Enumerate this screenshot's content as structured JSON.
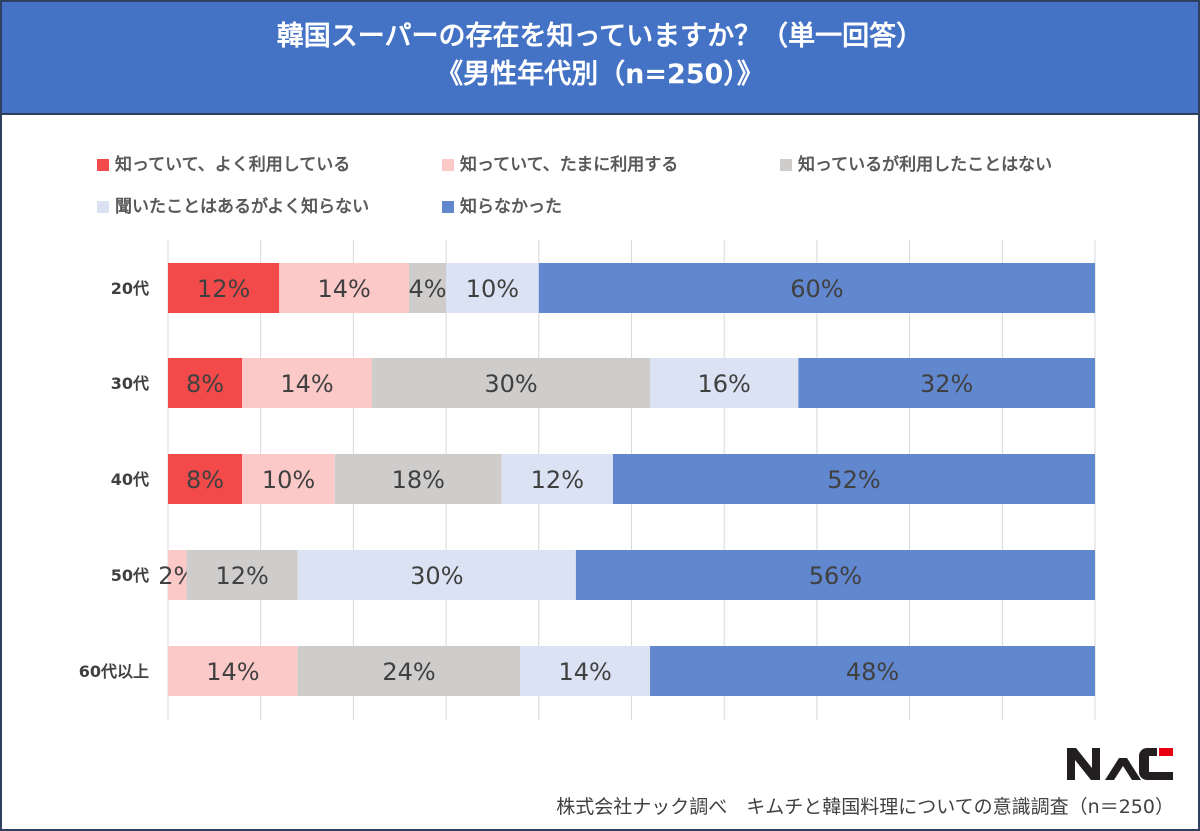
{
  "title": {
    "line1": "韓国スーパーの存在を知っていますか？（単一回答）",
    "line2": "《男性年代別（n=250）》"
  },
  "footer": "株式会社ナック調べ　キムチと韓国料理についての意識調査（n＝250）",
  "logo_text": "NAC",
  "chart_data": {
    "type": "bar",
    "orientation": "horizontal",
    "stacked": "100%",
    "categories": [
      "20代",
      "30代",
      "40代",
      "50代",
      "60代以上"
    ],
    "series": [
      {
        "name": "知っていて、よく利用している",
        "color": "#f24a4a",
        "values": [
          12,
          8,
          8,
          0,
          0
        ]
      },
      {
        "name": "知っていて、たまに利用する",
        "color": "#fcc9c9",
        "values": [
          14,
          14,
          10,
          2,
          14
        ]
      },
      {
        "name": "知っているが利用したことはない",
        "color": "#cfcccc",
        "values": [
          4,
          30,
          18,
          12,
          24
        ]
      },
      {
        "name": "聞いたことはあるがよく知らない",
        "color": "#dae2f3",
        "values": [
          10,
          16,
          12,
          30,
          14
        ]
      },
      {
        "name": "知らなかった",
        "color": "#6187cf",
        "values": [
          60,
          32,
          52,
          56,
          48
        ]
      }
    ],
    "xlim": [
      0,
      100
    ],
    "grid": true,
    "legend_position": "top",
    "value_suffix": "%"
  }
}
